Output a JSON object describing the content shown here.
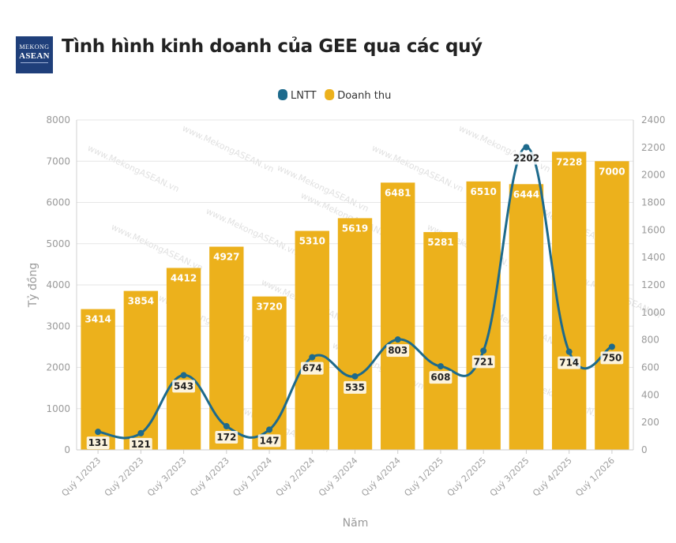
{
  "header": {
    "title": "Tình hình kinh doanh của GEE qua các quý",
    "logo_line1": "MEKONG",
    "logo_line2": "ASEAN"
  },
  "watermark": "www.MekongASEAN.vn",
  "chart_data": {
    "type": "bar",
    "title": "Tình hình kinh doanh của GEE qua các quý",
    "categories": [
      "Quý 1/2023",
      "Quý 2/2023",
      "Quý 3/2023",
      "Quý 4/2023",
      "Quý 1/2024",
      "Quý 2/2024",
      "Quý 3/2024",
      "Quý 4/2024",
      "Quý 1/2025",
      "Quý 2/2025",
      "Quý 3/2025",
      "Quý 4/2025",
      "Quý 1/2026"
    ],
    "series": [
      {
        "name": "Doanh thu",
        "type": "bar",
        "axis": "left",
        "color": "#ecb11c",
        "values": [
          3414,
          3854,
          4412,
          4927,
          3720,
          5310,
          5619,
          6481,
          5281,
          6510,
          6444,
          7228,
          7000
        ]
      },
      {
        "name": "LNTT",
        "type": "line",
        "axis": "right",
        "color": "#1d6a8c",
        "values": [
          131,
          121,
          543,
          172,
          147,
          674,
          535,
          803,
          608,
          721,
          2202,
          714,
          750
        ]
      }
    ],
    "xlabel": "Năm",
    "ylabel": "Tỷ đồng",
    "ylim": [
      0,
      8000
    ],
    "yticks": [
      0,
      1000,
      2000,
      3000,
      4000,
      5000,
      6000,
      7000,
      8000
    ],
    "y2lim": [
      0,
      2400
    ],
    "y2ticks": [
      0,
      200,
      400,
      600,
      800,
      1000,
      1200,
      1400,
      1600,
      1800,
      2000,
      2200,
      2400
    ],
    "grid": true,
    "legend": "top-center",
    "legend_items": [
      {
        "name": "LNTT",
        "color": "#1d6a8c"
      },
      {
        "name": "Doanh thu",
        "color": "#ecb11c"
      }
    ]
  }
}
